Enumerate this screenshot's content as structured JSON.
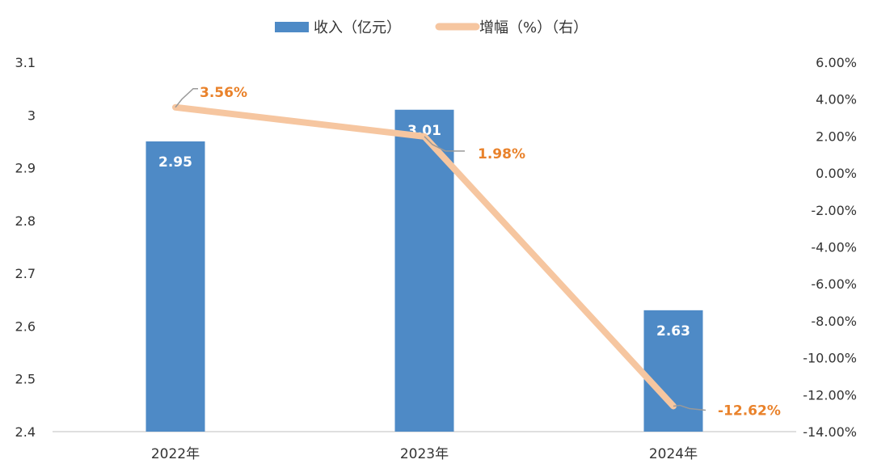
{
  "chart_data": {
    "type": "bar+line",
    "categories": [
      "2022年",
      "2023年",
      "2024年"
    ],
    "series": [
      {
        "name": "收入（亿元）",
        "type": "bar",
        "axis": "left",
        "values": [
          2.95,
          3.01,
          2.63
        ],
        "labels": [
          "2.95",
          "3.01",
          "2.63"
        ],
        "color": "#4E8AC6"
      },
      {
        "name": "增幅（%）（右）",
        "type": "line",
        "axis": "right",
        "values": [
          3.56,
          1.98,
          -12.62
        ],
        "labels": [
          "3.56%",
          "1.98%",
          "-12.62%"
        ],
        "color": "#F6C6A0",
        "label_color": "#E9822B"
      }
    ],
    "y_left": {
      "min": 2.4,
      "max": 3.1,
      "step": 0.1,
      "tick_labels": [
        "2.4",
        "2.5",
        "2.6",
        "2.7",
        "2.8",
        "2.9",
        "3",
        "3.1"
      ]
    },
    "y_right": {
      "min": -14,
      "max": 6,
      "step": 2,
      "tick_labels": [
        "-14.00%",
        "-12.00%",
        "-10.00%",
        "-8.00%",
        "-6.00%",
        "-4.00%",
        "-2.00%",
        "0.00%",
        "2.00%",
        "4.00%",
        "6.00%"
      ]
    },
    "legend": {
      "position": "top-center"
    },
    "grid": false
  }
}
